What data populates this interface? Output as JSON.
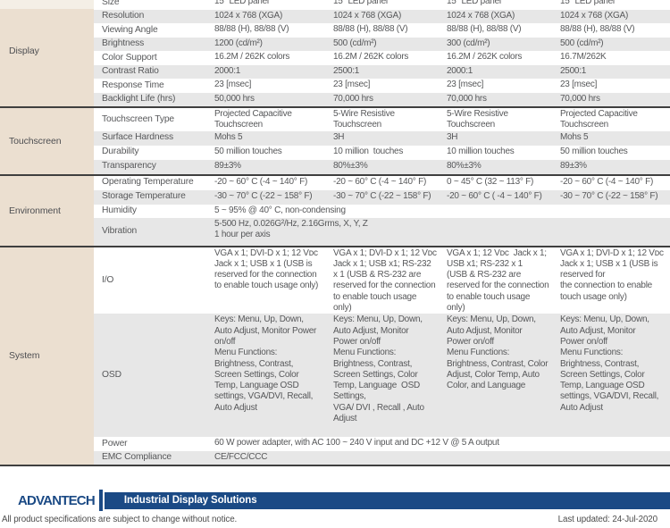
{
  "table": {
    "sections": [
      {
        "name": "Display",
        "rows": [
          {
            "label": "Size",
            "values": [
              "15\" LED panel",
              "15\" LED panel",
              "15\" LED panel",
              "15\" LED panel"
            ]
          },
          {
            "label": "Resolution",
            "values": [
              "1024 x 768 (XGA)",
              "1024 x 768 (XGA)",
              "1024 x 768 (XGA)",
              "1024 x 768 (XGA)"
            ]
          },
          {
            "label": "Viewing Angle",
            "values": [
              "88/88 (H), 88/88 (V)",
              "88/88 (H), 88/88 (V)",
              "88/88 (H), 88/88 (V)",
              "88/88 (H), 88/88 (V)"
            ]
          },
          {
            "label": "Brightness",
            "values": [
              "1200 (cd/m²)",
              "500 (cd/m²)",
              "300 (cd/m²)",
              "500 (cd/m²)"
            ]
          },
          {
            "label": "Color Support",
            "values": [
              "16.2M / 262K colors",
              "16.2M / 262K colors",
              "16.2M / 262K colors",
              "16.7M/262K"
            ]
          },
          {
            "label": "Contrast Ratio",
            "values": [
              "2000:1",
              "2500:1",
              "2000:1",
              "2500:1"
            ]
          },
          {
            "label": "Response Time",
            "values": [
              "23 [msec]",
              "23 [msec]",
              "23 [msec]",
              "23 [msec]"
            ]
          },
          {
            "label": "Backlight Life (hrs)",
            "values": [
              "50,000 hrs",
              "70,000 hrs",
              "70,000 hrs",
              "70,000 hrs"
            ]
          }
        ]
      },
      {
        "name": "Touchscreen",
        "rows": [
          {
            "label": "Touchscreen Type",
            "values": [
              "Projected Capacitive\nTouchscreen",
              "5-Wire Resistive\nTouchscreen",
              "5-Wire Resistive\nTouchscreen",
              "Projected Capacitive\nTouchscreen"
            ]
          },
          {
            "label": "Surface Hardness",
            "values": [
              "Mohs 5",
              "3H",
              "3H",
              "Mohs 5"
            ]
          },
          {
            "label": "Durability",
            "values": [
              "50 million touches",
              "10 million  touches",
              "10 million touches",
              "50 million touches"
            ]
          },
          {
            "label": "Transparency",
            "values": [
              "89±3%",
              "80%±3%",
              "80%±3%",
              "89±3%"
            ]
          }
        ]
      },
      {
        "name": "Environment",
        "rows": [
          {
            "label": "Operating Temperature",
            "values": [
              "-20 ~ 60° C (-4 ~ 140° F)",
              "-20 ~ 60° C (-4 ~ 140° F)",
              "0 ~ 45° C (32 ~ 113° F)",
              "-20 ~ 60° C (-4 ~ 140° F)"
            ]
          },
          {
            "label": "Storage Temperature",
            "values": [
              "-30 ~ 70° C (-22 ~ 158° F)",
              "-30 ~ 70° C (-22 ~ 158° F)",
              "-20 ~ 60° C ( -4 ~ 140° F)",
              "-30 ~ 70° C (-22 ~ 158° F)"
            ]
          },
          {
            "label": "Humidity",
            "span": "5 ~ 95% @ 40° C, non-condensing"
          },
          {
            "label": "Vibration",
            "span": "5-500 Hz, 0.026G²/Hz, 2.16Grms, X, Y, Z\n1 hour per axis"
          }
        ]
      },
      {
        "name": "System",
        "rows": [
          {
            "label": "I/O",
            "values": [
              "VGA x 1; DVI-D x 1; 12 Vᴅᴄ\nJack x 1; USB x 1 (USB is\nreserved for the connection\nto enable touch usage only)",
              "VGA x 1; DVI-D x 1; 12 Vᴅᴄ\nJack x 1; USB x1; RS-232\nx 1 (USB & RS-232 are\nreserved for the connection\nto enable touch usage\nonly)",
              "VGA x 1; 12 Vᴅᴄ  Jack x 1;\nUSB x1; RS-232 x 1\n(USB & RS-232 are\nreserved for the connection\nto enable touch usage\nonly)",
              "VGA x 1; DVI-D x 1; 12 Vᴅᴄ\nJack x 1; USB x 1 (USB is\nreserved for\nthe connection to enable\ntouch usage only)"
            ]
          },
          {
            "label": "OSD",
            "values": [
              "Keys: Menu, Up, Down,\nAuto Adjust, Monitor Power\non/off\nMenu Functions:\nBrightness, Contrast,\nScreen Settings, Color\nTemp, Language OSD\nsettings, VGA/DVI, Recall,\nAuto Adjust",
              "Keys: Menu, Up, Down,\nAuto Adjust, Monitor\nPower on/off\nMenu Functions:\nBrightness, Contrast,\nScreen Settings, Color\nTemp, Language  OSD\nSettings,\nVGA/ DVI , Recall , Auto\nAdjust",
              "Keys: Menu, Up, Down,\nAuto Adjust, Monitor\nPower on/off\nMenu Functions:\nBrightness, Contrast, Color\nAdjust, Color Temp, Auto\nColor, and Language",
              "Keys: Menu, Up, Down,\nAuto Adjust, Monitor\nPower on/off\nMenu Functions:\nBrightness, Contrast,\nScreen Settings, Color\nTemp, Language OSD\nsettings, VGA/DVI, Recall,\nAuto Adjust"
            ]
          },
          {
            "label": "Power",
            "span": "60 W power adapter, with AC 100 ~ 240 V input and DC +12 V @ 5 A output"
          },
          {
            "label": "EMC Compliance",
            "span": "CE/FCC/CCC"
          }
        ]
      }
    ]
  },
  "footer": {
    "brand": "ADVANTECH",
    "banner": "Industrial Display Solutions",
    "disclaimer": "All product specifications are subject to change without notice.",
    "last_updated": "Last updated: 24-Jul-2020"
  },
  "colors": {
    "brand_blue": "#1b4a85",
    "category_bg": "#ebdfd0",
    "category_bg_light": "#f4efe6",
    "stripe_bg": "#e7e7e7",
    "divider": "#3f3f3f",
    "text": "#57585a"
  }
}
